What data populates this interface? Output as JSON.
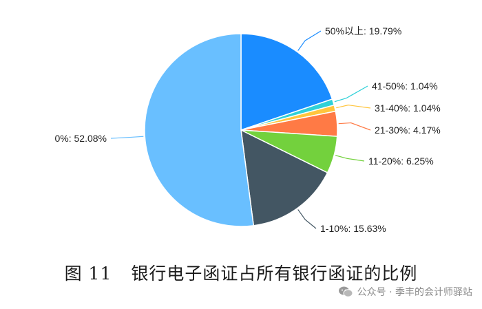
{
  "chart_data": {
    "type": "pie",
    "title": "",
    "slices": [
      {
        "label": "50%以上",
        "value": 19.79,
        "text": "50%以上: 19.79%",
        "color": "#1a8cff"
      },
      {
        "label": "41-50%",
        "value": 1.04,
        "text": "41-50%: 1.04%",
        "color": "#2fd1d8"
      },
      {
        "label": "31-40%",
        "value": 1.04,
        "text": "31-40%: 1.04%",
        "color": "#ffc53d"
      },
      {
        "label": "21-30%",
        "value": 4.17,
        "text": "21-30%: 4.17%",
        "color": "#ff7a45"
      },
      {
        "label": "11-20%",
        "value": 6.25,
        "text": "11-20%: 6.25%",
        "color": "#73d13d"
      },
      {
        "label": "1-10%",
        "value": 15.63,
        "text": "1-10%: 15.63%",
        "color": "#435663"
      },
      {
        "label": "0%",
        "value": 52.08,
        "text": "0%: 52.08%",
        "color": "#69bfff"
      }
    ]
  },
  "caption": {
    "number": "图 11",
    "text": "银行电子函证占所有银行函证的比例"
  },
  "watermark": {
    "icon": "wechat-icon",
    "text": "公众号 · 季丰的会计师驿站"
  }
}
